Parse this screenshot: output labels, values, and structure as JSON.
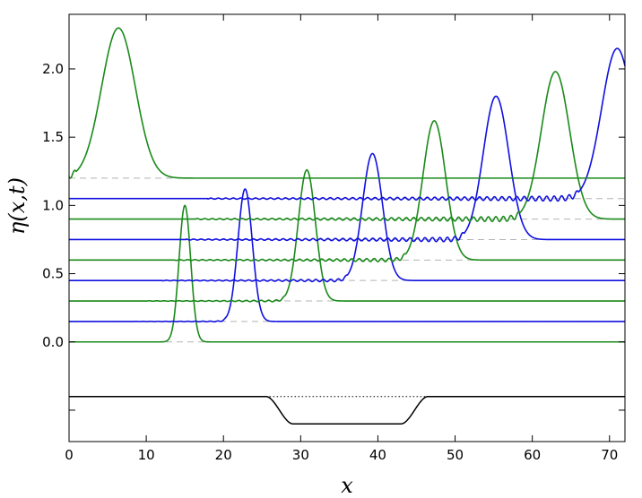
{
  "chart_data": {
    "type": "line",
    "title": "",
    "xlabel": "x",
    "ylabel": "η(x,t)",
    "xlim": [
      0,
      72
    ],
    "ylim": [
      -0.73,
      2.4
    ],
    "x_ticks": [
      0,
      10,
      20,
      30,
      40,
      50,
      60,
      70
    ],
    "x_tick_labels": [
      "0",
      "10",
      "20",
      "30",
      "40",
      "50",
      "60",
      "70"
    ],
    "y_ticks": [
      0.0,
      0.5,
      1.0,
      1.5,
      2.0
    ],
    "y_tick_labels": [
      "0.0",
      "0.5",
      "1.0",
      "1.5",
      "2.0"
    ],
    "grid": false,
    "legend": "none",
    "colors": {
      "green": "#1a8a1a",
      "blue": "#1010e0",
      "baseline": "#b4b4b4",
      "bathymetry": "#000000"
    },
    "series": [
      {
        "offset": 0.0,
        "color": "green",
        "peak_x": 15.0,
        "peak_y": 1.0
      },
      {
        "offset": 0.15,
        "color": "blue",
        "peak_x": 22.8,
        "peak_y": 1.12
      },
      {
        "offset": 0.3,
        "color": "green",
        "peak_x": 30.8,
        "peak_y": 1.26
      },
      {
        "offset": 0.45,
        "color": "blue",
        "peak_x": 39.3,
        "peak_y": 1.38
      },
      {
        "offset": 0.6,
        "color": "green",
        "peak_x": 47.3,
        "peak_y": 1.62
      },
      {
        "offset": 0.75,
        "color": "blue",
        "peak_x": 55.3,
        "peak_y": 1.8
      },
      {
        "offset": 0.9,
        "color": "green",
        "peak_x": 63.0,
        "peak_y": 1.98
      },
      {
        "offset": 1.05,
        "color": "blue",
        "peak_x": 71.0,
        "peak_y": 2.15
      },
      {
        "offset": 1.2,
        "color": "green",
        "peak_x": 6.4,
        "peak_y": 2.3
      }
    ],
    "bathymetry": {
      "top_level": -0.4,
      "bottom_level": -0.6,
      "x": [
        0,
        25.5,
        27,
        29,
        43,
        45,
        46.5,
        72
      ],
      "y": [
        -0.4,
        -0.4,
        -0.5,
        -0.6,
        -0.6,
        -0.5,
        -0.4,
        -0.4
      ]
    }
  }
}
